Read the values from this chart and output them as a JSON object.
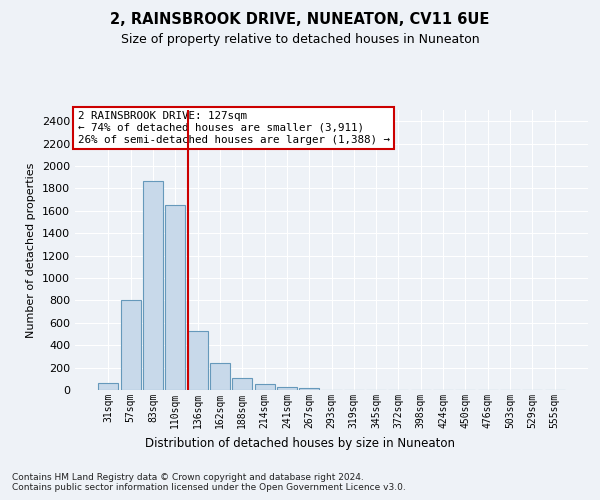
{
  "title": "2, RAINSBROOK DRIVE, NUNEATON, CV11 6UE",
  "subtitle": "Size of property relative to detached houses in Nuneaton",
  "xlabel": "Distribution of detached houses by size in Nuneaton",
  "ylabel": "Number of detached properties",
  "bar_color": "#c8d9ea",
  "bar_edge_color": "#6699bb",
  "categories": [
    "31sqm",
    "57sqm",
    "83sqm",
    "110sqm",
    "136sqm",
    "162sqm",
    "188sqm",
    "214sqm",
    "241sqm",
    "267sqm",
    "293sqm",
    "319sqm",
    "345sqm",
    "372sqm",
    "398sqm",
    "424sqm",
    "450sqm",
    "476sqm",
    "503sqm",
    "529sqm",
    "555sqm"
  ],
  "values": [
    60,
    800,
    1870,
    1650,
    530,
    240,
    105,
    55,
    30,
    20,
    0,
    0,
    0,
    0,
    0,
    0,
    0,
    0,
    0,
    0,
    0
  ],
  "ylim": [
    0,
    2500
  ],
  "yticks": [
    0,
    200,
    400,
    600,
    800,
    1000,
    1200,
    1400,
    1600,
    1800,
    2000,
    2200,
    2400
  ],
  "vline_x_index": 4,
  "vline_color": "#cc0000",
  "annotation_text": "2 RAINSBROOK DRIVE: 127sqm\n← 74% of detached houses are smaller (3,911)\n26% of semi-detached houses are larger (1,388) →",
  "annotation_box_color": "#ffffff",
  "annotation_box_edge": "#cc0000",
  "footnote": "Contains HM Land Registry data © Crown copyright and database right 2024.\nContains public sector information licensed under the Open Government Licence v3.0.",
  "background_color": "#eef2f7",
  "grid_color": "#ffffff"
}
